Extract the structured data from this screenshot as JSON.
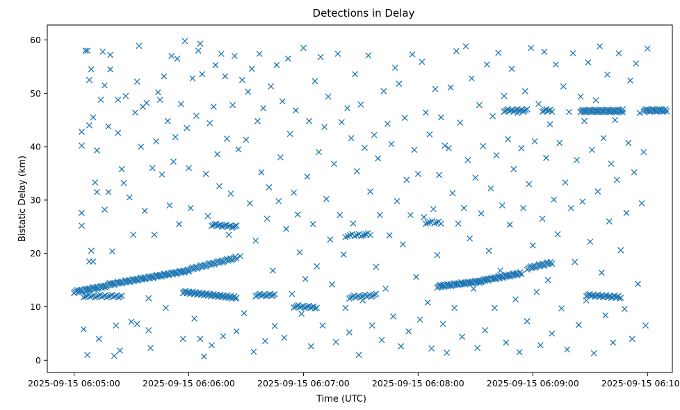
{
  "chart_data": {
    "type": "scatter",
    "title": "Detections in Delay",
    "xlabel": "Time (UTC)",
    "ylabel": "Bistatic Delay (km)",
    "marker": "x",
    "color": "#1f77b4",
    "grid": false,
    "legend": false,
    "x_start": "2025-09-15 06:05:00",
    "xlim": [
      "2025-09-15 06:04:46",
      "2025-09-15 06:10:13"
    ],
    "ylim": [
      -2.3,
      62.8
    ],
    "x_ticks": [
      "2025-09-15 06:05:00",
      "2025-09-15 06:06:00",
      "2025-09-15 06:07:00",
      "2025-09-15 06:08:00",
      "2025-09-15 06:09:00",
      "2025-09-15 06:10:00"
    ],
    "y_ticks": [
      0,
      10,
      20,
      30,
      40,
      50,
      60
    ],
    "x_tick_labels": [
      "2025-09-15 06:05:00",
      "2025-09-15 06:06:00",
      "2025-09-15 06:07:00",
      "2025-09-15 06:08:00",
      "2025-09-15 06:09:00",
      "2025-09-15 06:10:00"
    ],
    "y_tick_labels": [
      "0",
      "10",
      "20",
      "30",
      "40",
      "50",
      "60"
    ],
    "tracks": [
      {
        "x_from": "2025-09-15 06:05:00",
        "x_to": "2025-09-15 06:05:17",
        "y_from": 12.8,
        "y_to": 13.9,
        "count": 30
      },
      {
        "x_from": "2025-09-15 06:05:17",
        "x_to": "2025-09-15 06:06:00",
        "y_from": 14.1,
        "y_to": 16.8,
        "count": 75
      },
      {
        "x_from": "2025-09-15 06:06:00",
        "x_to": "2025-09-15 06:06:25",
        "y_from": 17.0,
        "y_to": 19.2,
        "count": 40
      },
      {
        "x_from": "2025-09-15 06:05:57",
        "x_to": "2025-09-15 06:06:25",
        "y_from": 12.8,
        "y_to": 11.7,
        "count": 55
      },
      {
        "x_from": "2025-09-15 06:05:05",
        "x_to": "2025-09-15 06:05:25",
        "y_from": 12.0,
        "y_to": 12.0,
        "count": 24
      },
      {
        "x_from": "2025-09-15 06:06:12",
        "x_to": "2025-09-15 06:06:25",
        "y_from": 25.4,
        "y_to": 25.0,
        "count": 18
      },
      {
        "x_from": "2025-09-15 06:06:35",
        "x_to": "2025-09-15 06:06:45",
        "y_from": 12.2,
        "y_to": 12.2,
        "count": 14
      },
      {
        "x_from": "2025-09-15 06:06:55",
        "x_to": "2025-09-15 06:07:07",
        "y_from": 10.1,
        "y_to": 9.9,
        "count": 16
      },
      {
        "x_from": "2025-09-15 06:07:24",
        "x_to": "2025-09-15 06:07:38",
        "y_from": 11.8,
        "y_to": 12.2,
        "count": 18
      },
      {
        "x_from": "2025-09-15 06:07:22",
        "x_to": "2025-09-15 06:07:35",
        "y_from": 23.3,
        "y_to": 23.6,
        "count": 12
      },
      {
        "x_from": "2025-09-15 06:08:10",
        "x_to": "2025-09-15 06:08:33",
        "y_from": 13.8,
        "y_to": 14.8,
        "count": 45
      },
      {
        "x_from": "2025-09-15 06:08:33",
        "x_to": "2025-09-15 06:08:54",
        "y_from": 14.9,
        "y_to": 16.3,
        "count": 40
      },
      {
        "x_from": "2025-09-15 06:08:57",
        "x_to": "2025-09-15 06:09:10",
        "y_from": 17.2,
        "y_to": 18.3,
        "count": 22
      },
      {
        "x_from": "2025-09-15 06:08:45",
        "x_to": "2025-09-15 06:08:57",
        "y_from": 46.8,
        "y_to": 46.8,
        "count": 18
      },
      {
        "x_from": "2025-09-15 06:09:05",
        "x_to": "2025-09-15 06:09:10",
        "y_from": 46.8,
        "y_to": 46.8,
        "count": 8
      },
      {
        "x_from": "2025-09-15 06:09:25",
        "x_to": "2025-09-15 06:09:47",
        "y_from": 46.7,
        "y_to": 46.7,
        "count": 50
      },
      {
        "x_from": "2025-09-15 06:09:58",
        "x_to": "2025-09-15 06:10:10",
        "y_from": 46.8,
        "y_to": 46.8,
        "count": 26
      },
      {
        "x_from": "2025-09-15 06:09:28",
        "x_to": "2025-09-15 06:09:46",
        "y_from": 12.2,
        "y_to": 11.8,
        "count": 30
      },
      {
        "x_from": "2025-09-15 06:08:04",
        "x_to": "2025-09-15 06:08:12",
        "y_from": 25.8,
        "y_to": 25.8,
        "count": 8
      }
    ],
    "points": [
      [
        4,
        42.8
      ],
      [
        4,
        40.2
      ],
      [
        4,
        27.6
      ],
      [
        4,
        25.2
      ],
      [
        5,
        5.8
      ],
      [
        6,
        58
      ],
      [
        7,
        58
      ],
      [
        7,
        1
      ],
      [
        8,
        18.5
      ],
      [
        8,
        44
      ],
      [
        8,
        52.5
      ],
      [
        9,
        54.5
      ],
      [
        10,
        45.5
      ],
      [
        9,
        20.5
      ],
      [
        10,
        18.5
      ],
      [
        11,
        33.3
      ],
      [
        12,
        31.5
      ],
      [
        12,
        39.3
      ],
      [
        13,
        4
      ],
      [
        14,
        48.8
      ],
      [
        15,
        57.8
      ],
      [
        16,
        51.5
      ],
      [
        16,
        28.2
      ],
      [
        18,
        31.5
      ],
      [
        18,
        43.8
      ],
      [
        19,
        57.2
      ],
      [
        19,
        54.5
      ],
      [
        20,
        20.4
      ],
      [
        21,
        0.8
      ],
      [
        22,
        6.5
      ],
      [
        23,
        42.6
      ],
      [
        23,
        48.8
      ],
      [
        24,
        1.8
      ],
      [
        25,
        35.8
      ],
      [
        26,
        33.2
      ],
      [
        27,
        49.5
      ],
      [
        29,
        30.5
      ],
      [
        30,
        7.2
      ],
      [
        31,
        23.5
      ],
      [
        32,
        46.4
      ],
      [
        33,
        52.2
      ],
      [
        33,
        6.8
      ],
      [
        34,
        58.9
      ],
      [
        35,
        40
      ],
      [
        36,
        47.5
      ],
      [
        37,
        28
      ],
      [
        38,
        48.2
      ],
      [
        39,
        5.6
      ],
      [
        39,
        11.6
      ],
      [
        40,
        2.3
      ],
      [
        41,
        36
      ],
      [
        42,
        23.5
      ],
      [
        43,
        41
      ],
      [
        44,
        50.2
      ],
      [
        45,
        48.8
      ],
      [
        46,
        34.8
      ],
      [
        47,
        53.2
      ],
      [
        48,
        9.8
      ],
      [
        49,
        44.8
      ],
      [
        50,
        29
      ],
      [
        51,
        57
      ],
      [
        52,
        37.2
      ],
      [
        53,
        41.8
      ],
      [
        54,
        56.5
      ],
      [
        55,
        25.5
      ],
      [
        56,
        48
      ],
      [
        57,
        4
      ],
      [
        58,
        59.8
      ],
      [
        59,
        43.5
      ],
      [
        60,
        36
      ],
      [
        61,
        28.5
      ],
      [
        62,
        52.8
      ],
      [
        63,
        7.8
      ],
      [
        64,
        45.8
      ],
      [
        65,
        58
      ],
      [
        66,
        4
      ],
      [
        66,
        59.3
      ],
      [
        67,
        53.6
      ],
      [
        68,
        0.7
      ],
      [
        69,
        34.9
      ],
      [
        70,
        27
      ],
      [
        71,
        44.4
      ],
      [
        72,
        2.8
      ],
      [
        73,
        47.5
      ],
      [
        74,
        55.3
      ],
      [
        75,
        38.6
      ],
      [
        76,
        32.6
      ],
      [
        77,
        57.4
      ],
      [
        78,
        4.5
      ],
      [
        79,
        53.2
      ],
      [
        80,
        41.5
      ],
      [
        81,
        23.5
      ],
      [
        82,
        31.2
      ],
      [
        83,
        47.8
      ],
      [
        84,
        57
      ],
      [
        85,
        5.4
      ],
      [
        86,
        39.5
      ],
      [
        87,
        19.5
      ],
      [
        88,
        52.5
      ],
      [
        89,
        8.8
      ],
      [
        90,
        41.3
      ],
      [
        91,
        50.3
      ],
      [
        92,
        29.4
      ],
      [
        93,
        54.6
      ],
      [
        94,
        1.6
      ],
      [
        95,
        22.4
      ],
      [
        96,
        44.8
      ],
      [
        97,
        57.4
      ],
      [
        98,
        35.2
      ],
      [
        99,
        47.2
      ],
      [
        100,
        3.6
      ],
      [
        101,
        26.5
      ],
      [
        102,
        32.4
      ],
      [
        103,
        51.3
      ],
      [
        104,
        16.8
      ],
      [
        105,
        6.4
      ],
      [
        106,
        55.3
      ],
      [
        107,
        29.8
      ],
      [
        108,
        38
      ],
      [
        109,
        48.5
      ],
      [
        110,
        4.2
      ],
      [
        111,
        24.6
      ],
      [
        112,
        56.5
      ],
      [
        113,
        42.4
      ],
      [
        114,
        12.4
      ],
      [
        115,
        31.4
      ],
      [
        116,
        46.8
      ],
      [
        117,
        27.3
      ],
      [
        118,
        20.2
      ],
      [
        119,
        8.7
      ],
      [
        120,
        58.5
      ],
      [
        121,
        15.2
      ],
      [
        122,
        34.4
      ],
      [
        123,
        44.8
      ],
      [
        124,
        2.6
      ],
      [
        125,
        25.5
      ],
      [
        126,
        52.3
      ],
      [
        127,
        17.6
      ],
      [
        128,
        39
      ],
      [
        129,
        56.8
      ],
      [
        130,
        6.5
      ],
      [
        131,
        43.7
      ],
      [
        132,
        30.2
      ],
      [
        133,
        49.4
      ],
      [
        134,
        22.6
      ],
      [
        135,
        14.2
      ],
      [
        136,
        36.8
      ],
      [
        137,
        3.4
      ],
      [
        138,
        57.4
      ],
      [
        139,
        27.2
      ],
      [
        140,
        44.6
      ],
      [
        141,
        19.8
      ],
      [
        142,
        9.8
      ],
      [
        143,
        47.2
      ],
      [
        144,
        5.2
      ],
      [
        145,
        41.6
      ],
      [
        146,
        25.6
      ],
      [
        147,
        53.6
      ],
      [
        148,
        35.4
      ],
      [
        149,
        1
      ],
      [
        150,
        47.9
      ],
      [
        151,
        11.2
      ],
      [
        152,
        39.8
      ],
      [
        153,
        23.5
      ],
      [
        154,
        57.1
      ],
      [
        155,
        31.6
      ],
      [
        156,
        6.5
      ],
      [
        157,
        42.2
      ],
      [
        158,
        17.5
      ],
      [
        159,
        37.8
      ],
      [
        160,
        27.2
      ],
      [
        161,
        3.8
      ],
      [
        162,
        50.4
      ],
      [
        163,
        13.4
      ],
      [
        164,
        44.3
      ],
      [
        165,
        23.4
      ],
      [
        166,
        40.5
      ],
      [
        167,
        8.2
      ],
      [
        168,
        54.8
      ],
      [
        169,
        29.8
      ],
      [
        170,
        51.8
      ],
      [
        171,
        2.6
      ],
      [
        172,
        21.7
      ],
      [
        173,
        45.4
      ],
      [
        174,
        33.8
      ],
      [
        175,
        5.4
      ],
      [
        176,
        27.2
      ],
      [
        177,
        57.3
      ],
      [
        178,
        39.4
      ],
      [
        179,
        15.6
      ],
      [
        180,
        34.9
      ],
      [
        181,
        7.6
      ],
      [
        182,
        55.9
      ],
      [
        183,
        26.8
      ],
      [
        184,
        46.4
      ],
      [
        185,
        10.8
      ],
      [
        186,
        42.3
      ],
      [
        187,
        2.2
      ],
      [
        188,
        28.3
      ],
      [
        189,
        50.8
      ],
      [
        190,
        19.7
      ],
      [
        191,
        34.7
      ],
      [
        192,
        45.5
      ],
      [
        193,
        6.8
      ],
      [
        194,
        40.2
      ],
      [
        195,
        1.4
      ],
      [
        196,
        39.7
      ],
      [
        197,
        51.1
      ],
      [
        198,
        31.3
      ],
      [
        199,
        9.8
      ],
      [
        200,
        57.9
      ],
      [
        201,
        25.6
      ],
      [
        202,
        44.5
      ],
      [
        203,
        4.4
      ],
      [
        204,
        28.5
      ],
      [
        205,
        58.8
      ],
      [
        206,
        37.5
      ],
      [
        207,
        22.8
      ],
      [
        208,
        52.8
      ],
      [
        209,
        13.4
      ],
      [
        210,
        34.2
      ],
      [
        211,
        2.3
      ],
      [
        212,
        47.8
      ],
      [
        213,
        27.5
      ],
      [
        214,
        40.1
      ],
      [
        215,
        5.6
      ],
      [
        216,
        55.4
      ],
      [
        217,
        20.5
      ],
      [
        218,
        32.2
      ],
      [
        219,
        45.7
      ],
      [
        220,
        9.8
      ],
      [
        221,
        38.4
      ],
      [
        222,
        57.6
      ],
      [
        223,
        16.8
      ],
      [
        224,
        29
      ],
      [
        225,
        49.5
      ],
      [
        226,
        3.3
      ],
      [
        227,
        41.4
      ],
      [
        228,
        25.4
      ],
      [
        229,
        54.6
      ],
      [
        230,
        35.8
      ],
      [
        231,
        11.4
      ],
      [
        232,
        46.3
      ],
      [
        233,
        1.5
      ],
      [
        234,
        39.7
      ],
      [
        235,
        28.5
      ],
      [
        236,
        50.4
      ],
      [
        237,
        7.3
      ],
      [
        238,
        33
      ],
      [
        239,
        58.5
      ],
      [
        240,
        21.5
      ],
      [
        241,
        41
      ],
      [
        242,
        12.8
      ],
      [
        243,
        48
      ],
      [
        244,
        2.8
      ],
      [
        245,
        26.5
      ],
      [
        246,
        57.8
      ],
      [
        247,
        37.9
      ],
      [
        248,
        15
      ],
      [
        249,
        44.2
      ],
      [
        250,
        5
      ],
      [
        251,
        30.1
      ],
      [
        252,
        55.4
      ],
      [
        253,
        23.6
      ],
      [
        254,
        40.7
      ],
      [
        255,
        9.7
      ],
      [
        256,
        51.3
      ],
      [
        257,
        33.3
      ],
      [
        258,
        2
      ],
      [
        259,
        46.5
      ],
      [
        260,
        28.5
      ],
      [
        261,
        57.5
      ],
      [
        262,
        18.4
      ],
      [
        263,
        37.5
      ],
      [
        264,
        6.6
      ],
      [
        265,
        49.4
      ],
      [
        266,
        29.7
      ],
      [
        267,
        44.8
      ],
      [
        268,
        11.2
      ],
      [
        269,
        55.8
      ],
      [
        270,
        22.2
      ],
      [
        271,
        39.4
      ],
      [
        272,
        1.3
      ],
      [
        273,
        48.7
      ],
      [
        274,
        31.6
      ],
      [
        275,
        58.8
      ],
      [
        276,
        16.4
      ],
      [
        277,
        41.6
      ],
      [
        278,
        8.4
      ],
      [
        279,
        53.5
      ],
      [
        280,
        26
      ],
      [
        281,
        36.8
      ],
      [
        282,
        3.3
      ],
      [
        283,
        45
      ],
      [
        284,
        33.8
      ],
      [
        285,
        57.5
      ],
      [
        286,
        20.6
      ],
      [
        287,
        47
      ],
      [
        288,
        9.6
      ],
      [
        289,
        27.6
      ],
      [
        290,
        40.7
      ],
      [
        291,
        52.4
      ],
      [
        292,
        4
      ],
      [
        293,
        35.2
      ],
      [
        294,
        55.6
      ],
      [
        295,
        14.3
      ],
      [
        296,
        46.3
      ],
      [
        297,
        29.4
      ],
      [
        298,
        39
      ],
      [
        299,
        6.5
      ],
      [
        300,
        58.4
      ]
    ]
  }
}
